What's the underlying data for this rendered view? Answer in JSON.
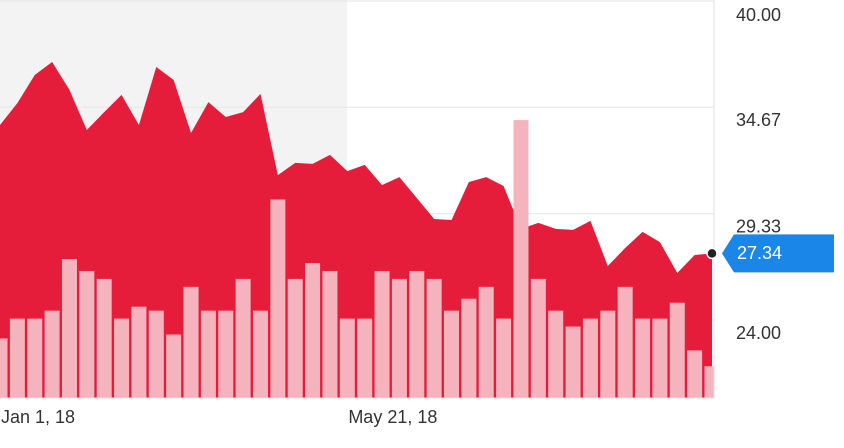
{
  "chart_data": {
    "type": "area",
    "categories": [
      "Jan 1, 18",
      null,
      null,
      null,
      null,
      null,
      null,
      null,
      null,
      null,
      null,
      null,
      null,
      null,
      null,
      null,
      null,
      null,
      null,
      null,
      "May 21, 18",
      null,
      null,
      null,
      null,
      null,
      null,
      null,
      null,
      null,
      null,
      null,
      null,
      null,
      null,
      null,
      null,
      null,
      null,
      null,
      null,
      null
    ],
    "values": [
      33.78,
      34.88,
      36.29,
      36.94,
      35.54,
      33.53,
      34.43,
      35.29,
      33.78,
      36.69,
      36.04,
      33.38,
      34.93,
      34.18,
      34.43,
      35.34,
      31.27,
      31.88,
      31.83,
      32.28,
      31.47,
      31.78,
      30.77,
      31.17,
      30.12,
      29.07,
      29.02,
      30.92,
      31.17,
      30.72,
      28.57,
      28.87,
      28.57,
      28.52,
      28.97,
      26.71,
      27.61,
      28.42,
      27.91,
      26.36,
      27.26,
      27.34
    ],
    "volumes": [
      15,
      20,
      20,
      22,
      35,
      32,
      30,
      20,
      23,
      22,
      16,
      28,
      22,
      22,
      30,
      22,
      50,
      30,
      34,
      32,
      20,
      20,
      32,
      30,
      32,
      30,
      22,
      25,
      28,
      20,
      70,
      30,
      22,
      18,
      20,
      22,
      28,
      20,
      20,
      24,
      12,
      8
    ],
    "vlim": [
      0,
      100
    ],
    "color": "#e51d3a",
    "volume_color": "#f5b3bd",
    "last_color": "#1a87e8",
    "ylim": [
      20.09,
      40
    ],
    "yticks": [
      {
        "value": 40,
        "label": "40.00"
      },
      34.67,
      29.33,
      {
        "value": 24,
        "label": "24.00"
      }
    ],
    "grid": true
  }
}
